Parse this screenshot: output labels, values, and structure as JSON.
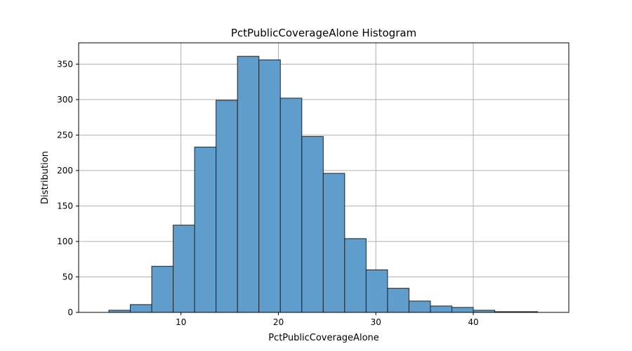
{
  "chart_data": {
    "type": "bar",
    "title": "PctPublicCoverageAlone Histogram",
    "xlabel": "PctPublicCoverageAlone",
    "ylabel": "Distribution",
    "xlim": [
      -0.5,
      49.8
    ],
    "ylim": [
      0,
      380
    ],
    "xticks": [
      10,
      20,
      30,
      40
    ],
    "yticks": [
      0,
      50,
      100,
      150,
      200,
      250,
      300,
      350
    ],
    "grid": true,
    "bar_color": "#5f9ecc",
    "bar_edge_color": "#222222",
    "bins": [
      {
        "start": 2.6,
        "end": 4.8,
        "count": 3
      },
      {
        "start": 4.8,
        "end": 7.0,
        "count": 11
      },
      {
        "start": 7.0,
        "end": 9.2,
        "count": 65
      },
      {
        "start": 9.2,
        "end": 11.4,
        "count": 123
      },
      {
        "start": 11.4,
        "end": 13.6,
        "count": 233
      },
      {
        "start": 13.6,
        "end": 15.8,
        "count": 299
      },
      {
        "start": 15.8,
        "end": 18.0,
        "count": 361
      },
      {
        "start": 18.0,
        "end": 20.2,
        "count": 356
      },
      {
        "start": 20.2,
        "end": 22.4,
        "count": 302
      },
      {
        "start": 22.4,
        "end": 24.6,
        "count": 248
      },
      {
        "start": 24.6,
        "end": 26.8,
        "count": 196
      },
      {
        "start": 26.8,
        "end": 29.0,
        "count": 104
      },
      {
        "start": 29.0,
        "end": 31.2,
        "count": 60
      },
      {
        "start": 31.2,
        "end": 33.4,
        "count": 34
      },
      {
        "start": 33.4,
        "end": 35.6,
        "count": 16
      },
      {
        "start": 35.6,
        "end": 37.8,
        "count": 9
      },
      {
        "start": 37.8,
        "end": 40.0,
        "count": 7
      },
      {
        "start": 40.0,
        "end": 42.2,
        "count": 3
      },
      {
        "start": 42.2,
        "end": 44.4,
        "count": 1
      },
      {
        "start": 44.4,
        "end": 46.6,
        "count": 1
      }
    ]
  }
}
